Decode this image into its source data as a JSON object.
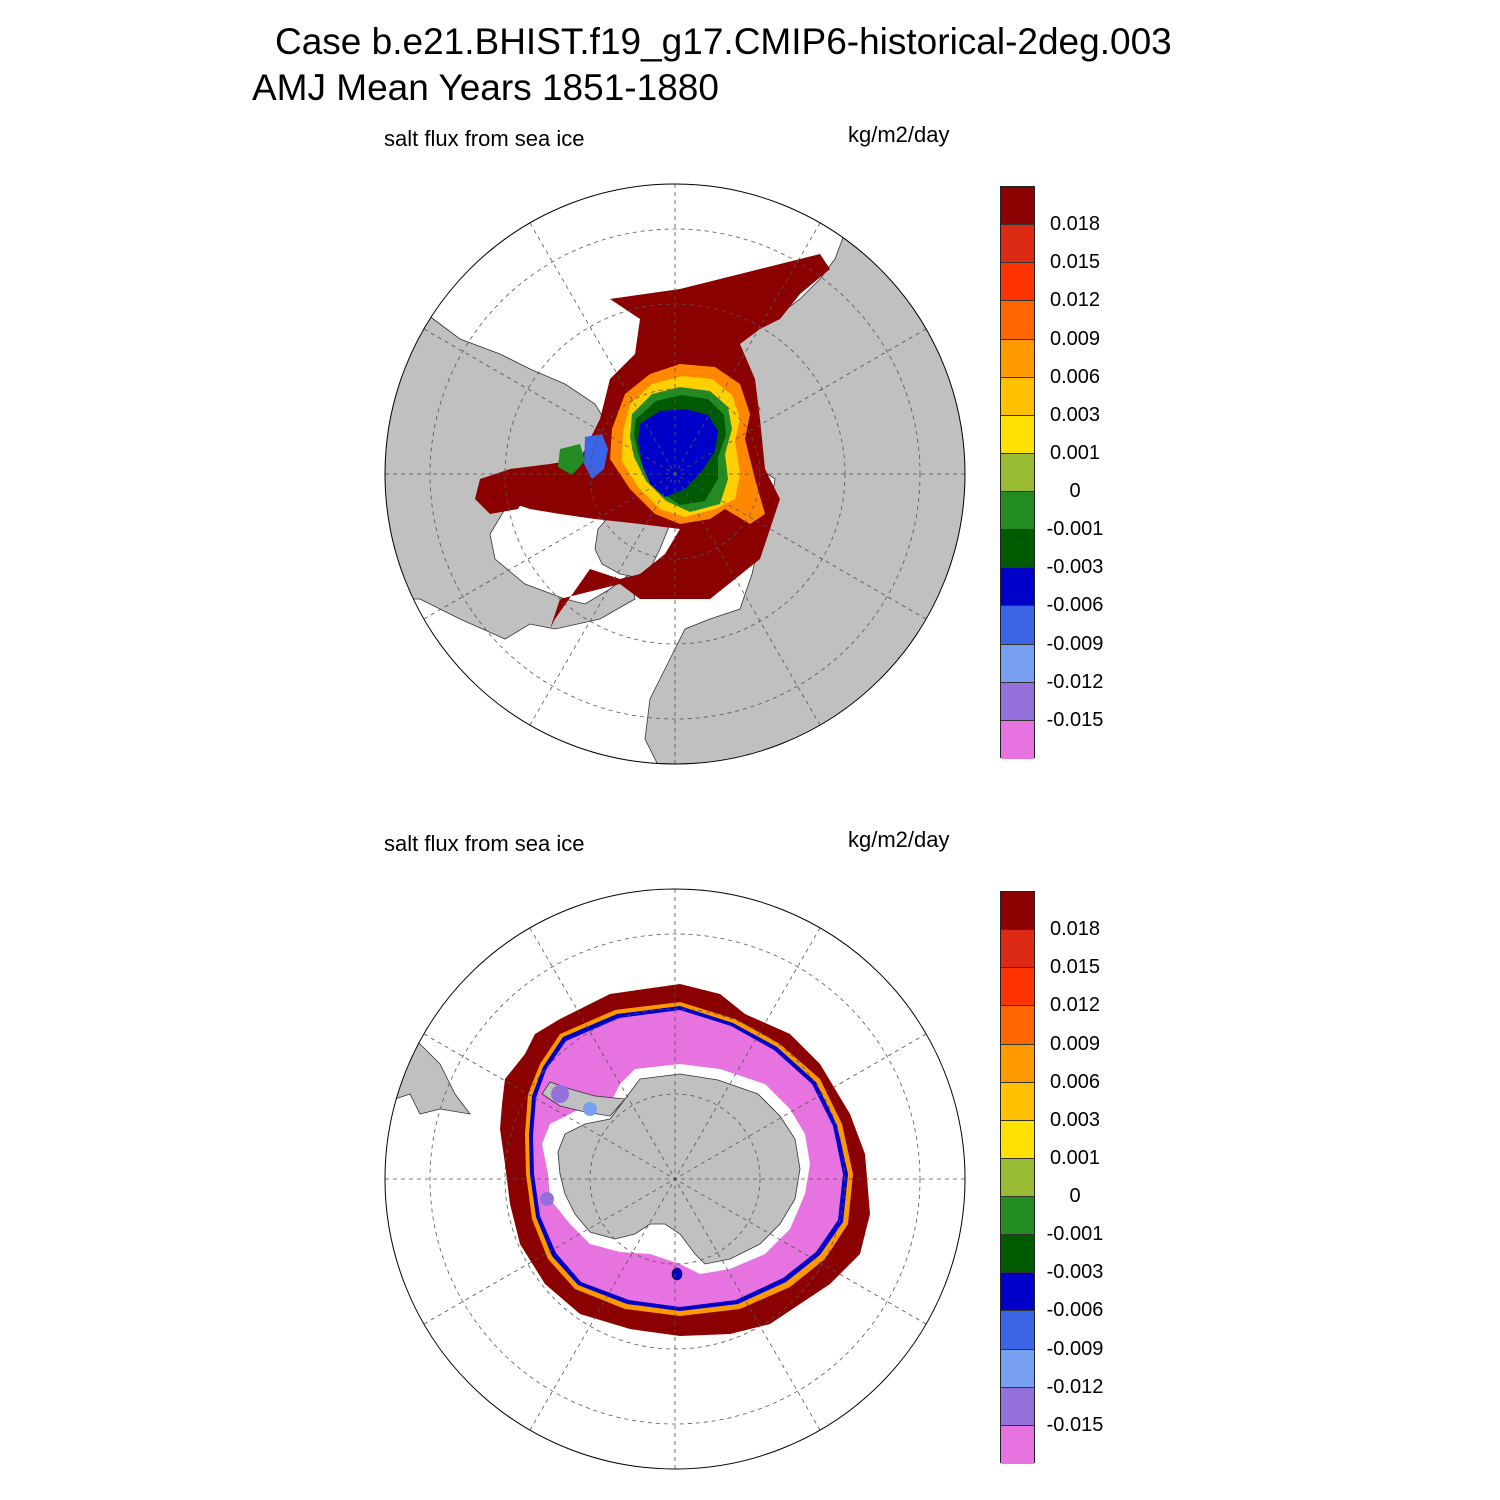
{
  "title": {
    "line1": "Case b.e21.BHIST.f19_g17.CMIP6-historical-2deg.003",
    "line2": "AMJ Mean   Years 1851-1880"
  },
  "panels": [
    {
      "hemisphere": "north",
      "left_label": "salt flux from sea ice",
      "right_label": "kg/m2/day"
    },
    {
      "hemisphere": "south",
      "left_label": "salt flux from sea ice",
      "right_label": "kg/m2/day"
    }
  ],
  "colorbar": {
    "labels": [
      "0.018",
      "0.015",
      "0.012",
      "0.009",
      "0.006",
      "0.003",
      "0.001",
      "0",
      "-0.001",
      "-0.003",
      "-0.006",
      "-0.009",
      "-0.012",
      "-0.015"
    ],
    "colors_top_to_bottom": [
      "#8b0000",
      "#dc2a14",
      "#ff3300",
      "#ff6600",
      "#ff9900",
      "#ffc000",
      "#ffe000",
      "#99bb33",
      "#228b22",
      "#005a00",
      "#0000c8",
      "#3c64e6",
      "#78a0f0",
      "#9370db",
      "#e673e0"
    ]
  },
  "colors": {
    "land": "#c0c0c0",
    "ocean_background": "#ffffff",
    "grid": "#555555"
  }
}
